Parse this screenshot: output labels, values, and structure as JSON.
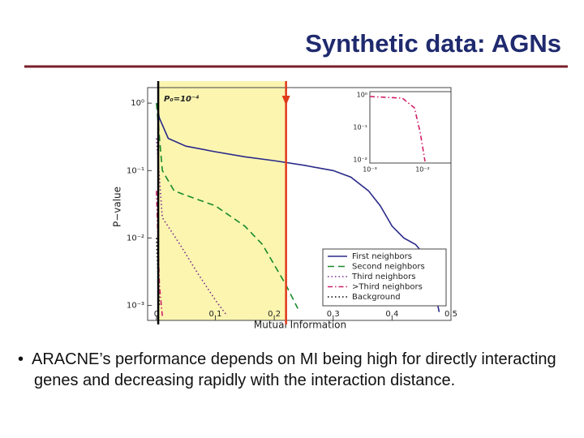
{
  "title": "Synthetic data: AGNs",
  "bullet": "ARACNE’s performance depends on MI being high for directly interacting genes and decreasing rapidly with the interaction distance.",
  "chart_data": {
    "type": "line",
    "y_scale": "log",
    "legend": "lower right",
    "xlabel": "Mutual Information",
    "ylabel": "P−value",
    "annotation": "P₀=10⁻⁴",
    "xlim": [
      -0.015,
      0.5
    ],
    "xticks": [
      0,
      0.1,
      0.2,
      0.3,
      0.4,
      0.5
    ],
    "ylim": [
      0.0006,
      1.7
    ],
    "yticks": [
      {
        "value": 1,
        "label": "10⁰"
      },
      {
        "value": 0.1,
        "label": "10⁻¹"
      },
      {
        "value": 0.01,
        "label": "10⁻²"
      },
      {
        "value": 0.001,
        "label": "10⁻³"
      }
    ],
    "vlines": [
      {
        "x": 0.003,
        "color": "#000000"
      },
      {
        "x": 0.22,
        "color": "#e03a1a"
      }
    ],
    "shade_color": "#fbf5b0",
    "series": [
      {
        "name": "First neighbors",
        "color": "#2a2a8a",
        "linestyle": "solid",
        "x": [
          0,
          0.005,
          0.02,
          0.05,
          0.1,
          0.15,
          0.2,
          0.25,
          0.3,
          0.33,
          0.36,
          0.38,
          0.4,
          0.42,
          0.44,
          0.46,
          0.48
        ],
        "values": [
          1,
          0.6,
          0.3,
          0.23,
          0.19,
          0.16,
          0.14,
          0.12,
          0.1,
          0.08,
          0.05,
          0.03,
          0.015,
          0.01,
          0.008,
          0.005,
          0.0008
        ]
      },
      {
        "name": "Second neighbors",
        "color": "#1a8a2a",
        "linestyle": "dashed",
        "x": [
          0,
          0.01,
          0.03,
          0.06,
          0.1,
          0.15,
          0.18,
          0.2,
          0.22,
          0.24
        ],
        "values": [
          1,
          0.1,
          0.05,
          0.04,
          0.03,
          0.015,
          0.008,
          0.004,
          0.002,
          0.0009
        ]
      },
      {
        "name": "Third neighbors",
        "color": "#7a2a8a",
        "linestyle": "dotted",
        "x": [
          0,
          0.01,
          0.04,
          0.07,
          0.1,
          0.12
        ],
        "values": [
          0.3,
          0.02,
          0.008,
          0.003,
          0.0012,
          0.0007
        ]
      },
      {
        "name": ">Third neighbors",
        "color": "#d0206a",
        "linestyle": "dashdot",
        "x": [
          0,
          0.005,
          0.01
        ],
        "values": [
          0.05,
          0.002,
          0.0007
        ]
      },
      {
        "name": "Background",
        "color": "#000000",
        "linestyle": "dotted",
        "x": [
          0,
          0.005
        ],
        "values": [
          0.01,
          0.001
        ]
      }
    ]
  },
  "inset": {
    "xticks": [
      "10⁻³",
      "10⁻²"
    ],
    "yticks": [
      "10⁰",
      "10⁻¹",
      "10⁻²"
    ]
  }
}
